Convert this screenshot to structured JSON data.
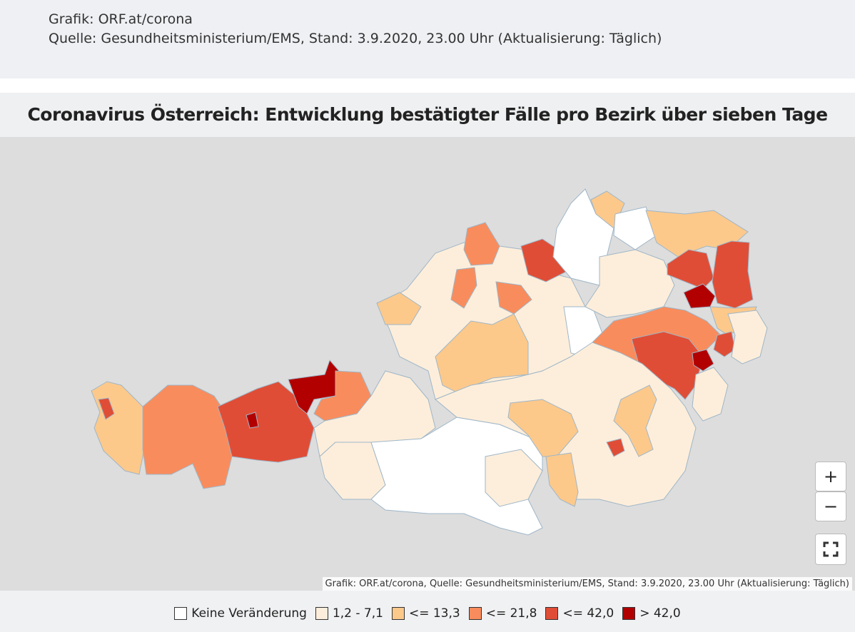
{
  "header": {
    "credit": "Grafik: ORF.at/corona",
    "source": "Quelle: Gesundheitsministerium/EMS, Stand: 3.9.2020, 23.00 Uhr (Aktualisierung: Täglich)"
  },
  "map": {
    "title": "Coronavirus Österreich: Entwicklung bestätigter Fälle pro Bezirk über sieben Tage",
    "attribution": "Grafik: ORF.at/corona, Quelle: Gesundheitsministerium/EMS, Stand: 3.9.2020, 23.00 Uhr (Aktualisierung: Täglich)",
    "zoom_in": "+",
    "zoom_out": "−"
  },
  "legend": {
    "items": [
      {
        "label": "Keine Veränderung",
        "color": "#ffffff"
      },
      {
        "label": "1,2 - 7,1",
        "color": "#fdeedb"
      },
      {
        "label": "<= 13,3",
        "color": "#fcc98b"
      },
      {
        "label": "<= 21,8",
        "color": "#f98c5c"
      },
      {
        "label": "<= 42,0",
        "color": "#e04d36"
      },
      {
        "label": "> 42,0",
        "color": "#b20000"
      }
    ]
  }
}
